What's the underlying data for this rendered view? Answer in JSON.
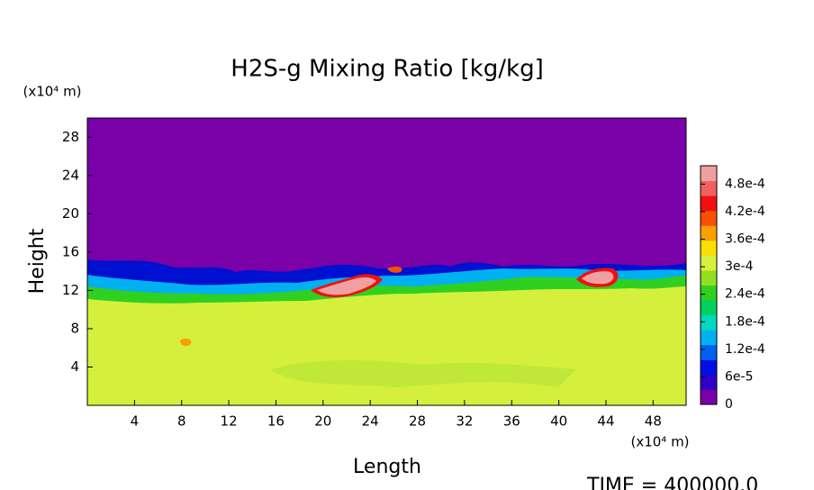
{
  "chart_data": {
    "type": "contour",
    "title": "H2S-g Mixing Ratio [kg/kg]",
    "x_label": "Length",
    "y_label": "Height",
    "x_unit": "(x10⁴ m)",
    "y_unit": "(x10⁴ m)",
    "annotation": "TIME = 400000.0",
    "xlim": [
      0,
      50.8
    ],
    "ylim": [
      0,
      30
    ],
    "xticks": [
      4,
      8,
      12,
      16,
      20,
      24,
      28,
      32,
      36,
      40,
      44,
      48
    ],
    "yticks": [
      4,
      8,
      12,
      16,
      20,
      24,
      28
    ],
    "clim": [
      0,
      0.00052
    ],
    "cticks": [
      0,
      {
        "value": 6e-05,
        "label": "6e-5"
      },
      {
        "value": 0.00012,
        "label": "1.2e-4"
      },
      {
        "value": 0.00018,
        "label": "1.8e-4"
      },
      {
        "value": 0.00024,
        "label": "2.4e-4"
      },
      {
        "value": 0.0003,
        "label": "3e-4"
      },
      {
        "value": 0.00036,
        "label": "3.6e-4"
      },
      {
        "value": 0.00042,
        "label": "4.2e-4"
      },
      {
        "value": 0.00048,
        "label": "4.8e-4"
      }
    ],
    "colormap": [
      "#7a00a8",
      "#3000c8",
      "#0010e0",
      "#0060f0",
      "#00b0f0",
      "#00d8c0",
      "#00d060",
      "#30d020",
      "#90e020",
      "#d8f040",
      "#f8e000",
      "#f8a000",
      "#f85000",
      "#f01010",
      "#f06060",
      "#f0a0a0"
    ]
  }
}
